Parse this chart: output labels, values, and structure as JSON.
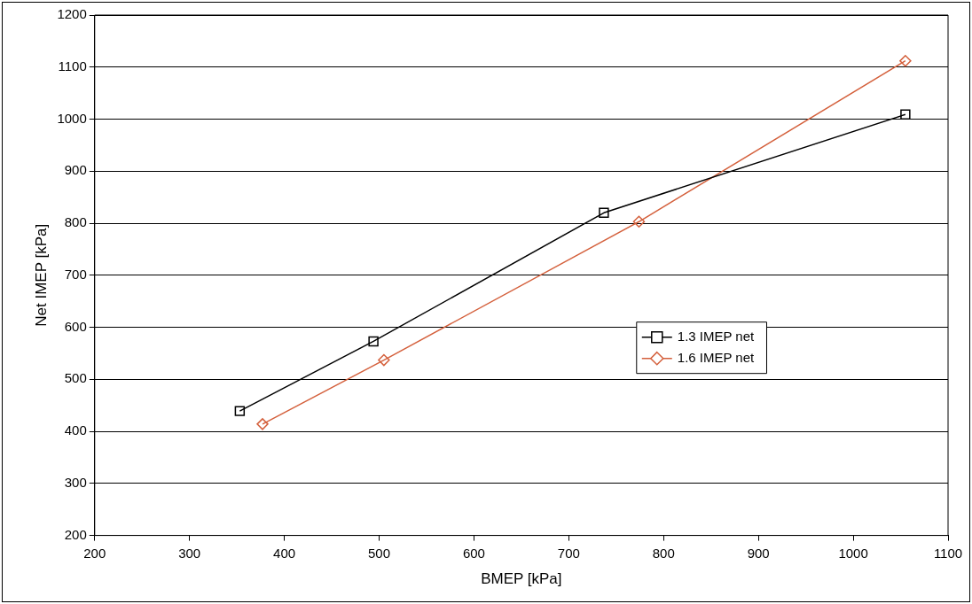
{
  "chart_data": {
    "type": "line",
    "xlabel": "BMEP [kPa]",
    "ylabel": "Net IMEP [kPa]",
    "xlim": [
      200,
      1100
    ],
    "xticks": [
      200,
      300,
      400,
      500,
      600,
      700,
      800,
      900,
      1000,
      1100
    ],
    "ylim": [
      200,
      1200
    ],
    "yticks": [
      200,
      300,
      400,
      500,
      600,
      700,
      800,
      900,
      1000,
      1100,
      1200
    ],
    "grid": "y",
    "legend": "right",
    "series": [
      {
        "name": "1.3 IMEP net",
        "color": "#000000",
        "marker": "square",
        "x": [
          353,
          494,
          737,
          1055
        ],
        "values": [
          439,
          573,
          820,
          1009
        ]
      },
      {
        "name": "1.6 IMEP net",
        "color": "#d4603c",
        "marker": "diamond",
        "x": [
          377,
          505,
          774,
          1055
        ],
        "values": [
          414,
          537,
          803,
          1112
        ]
      }
    ]
  }
}
